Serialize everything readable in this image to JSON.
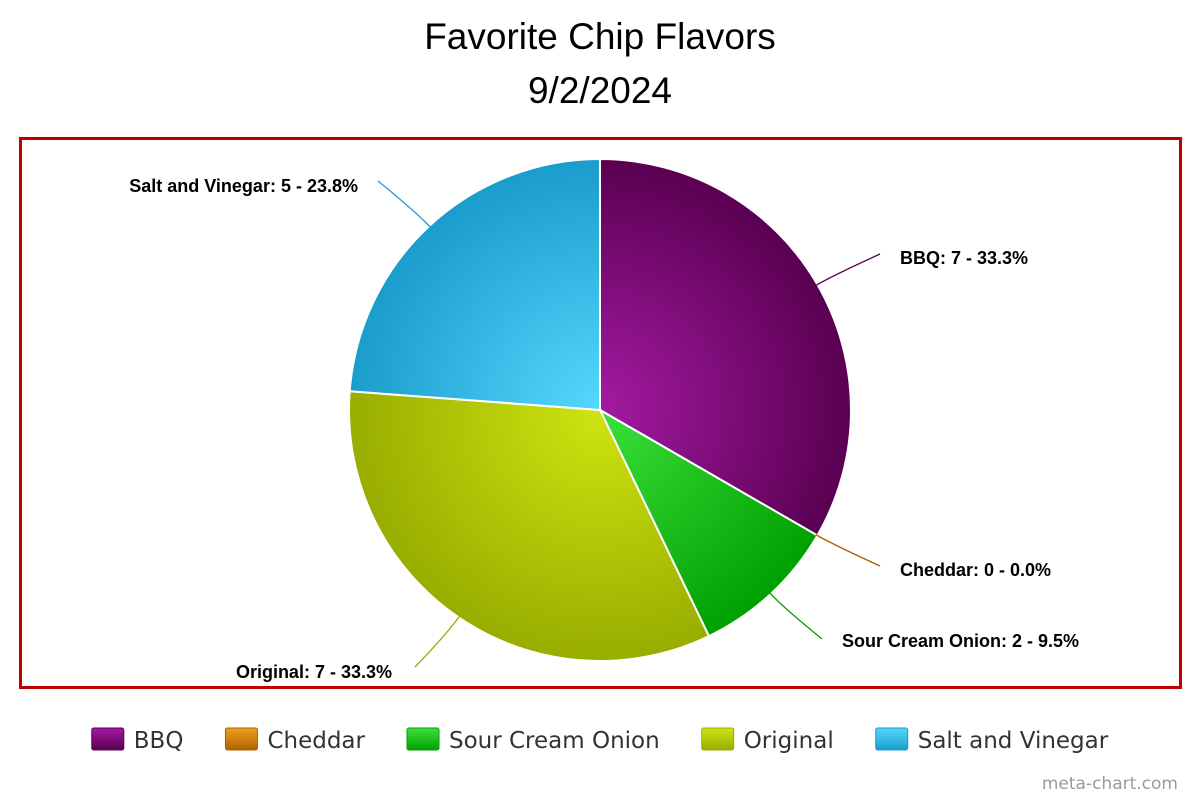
{
  "title": "Favorite Chip Flavors",
  "subtitle": "9/2/2024",
  "credit": "meta-chart.com",
  "chart_data": {
    "type": "pie",
    "title": "Favorite Chip Flavors",
    "subtitle": "9/2/2024",
    "legend_position": "bottom",
    "slices": [
      {
        "label": "BBQ",
        "value": 7,
        "percent": "33.3%",
        "data_label": "BBQ: 7 - 33.3%",
        "color": "#8a1185",
        "color_light": "#a41aa3",
        "color_dark": "#5a0051"
      },
      {
        "label": "Cheddar",
        "value": 0,
        "percent": "0.0%",
        "data_label": "Cheddar: 0 - 0.0%",
        "color": "#d4860a",
        "color_light": "#f0a020",
        "color_dark": "#b06000"
      },
      {
        "label": "Sour Cream Onion",
        "value": 2,
        "percent": "9.5%",
        "data_label": "Sour Cream Onion: 2 - 9.5%",
        "color": "#22c422",
        "color_light": "#3ce03c",
        "color_dark": "#00a000"
      },
      {
        "label": "Original",
        "value": 7,
        "percent": "33.3%",
        "data_label": "Original: 7 - 33.3%",
        "color": "#b2cc08",
        "color_light": "#cfe410",
        "color_dark": "#98ad00"
      },
      {
        "label": "Salt and Vinegar",
        "value": 5,
        "percent": "23.8%",
        "data_label": "Salt and Vinegar: 5 - 23.8%",
        "color": "#30b4e0",
        "color_light": "#55d8ff",
        "color_dark": "#1a9ccc"
      }
    ]
  }
}
